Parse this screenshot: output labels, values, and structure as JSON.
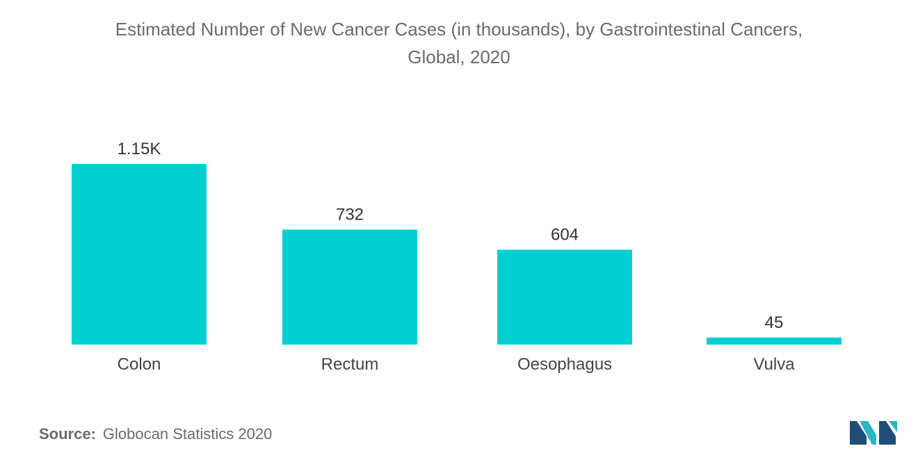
{
  "title_lines": [
    "Estimated Number of New Cancer Cases (in thousands), by Gastrointestinal Cancers,",
    "Global, 2020"
  ],
  "chart_data": {
    "type": "bar",
    "title": "Estimated Number of New Cancer Cases (in thousands), by Gastrointestinal Cancers, Global, 2020",
    "categories": [
      "Colon",
      "Rectum",
      "Oesophagus",
      "Vulva"
    ],
    "values": [
      1150,
      732,
      604,
      45
    ],
    "data_labels": [
      "1.15K",
      "732",
      "604",
      "45"
    ],
    "xlabel": "",
    "ylabel": "",
    "ylim": [
      0,
      1150
    ],
    "grid": false,
    "bar_color": "#00cfd1"
  },
  "source": {
    "label": "Source:",
    "text": "Globocan Statistics 2020"
  },
  "colors": {
    "logo_dark": "#1f4e79",
    "logo_light": "#29b6c9"
  }
}
